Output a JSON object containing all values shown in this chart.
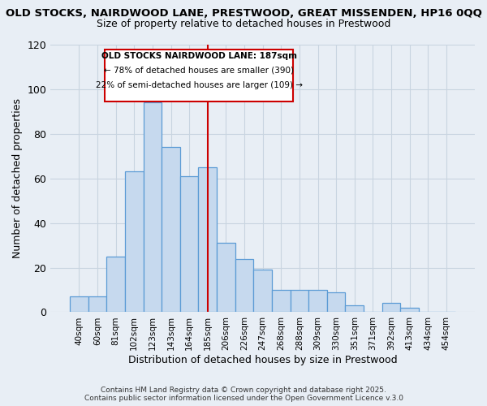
{
  "title_line1": "OLD STOCKS, NAIRDWOOD LANE, PRESTWOOD, GREAT MISSENDEN, HP16 0QQ",
  "title_line2": "Size of property relative to detached houses in Prestwood",
  "xlabel": "Distribution of detached houses by size in Prestwood",
  "ylabel": "Number of detached properties",
  "categories": [
    "40sqm",
    "60sqm",
    "81sqm",
    "102sqm",
    "123sqm",
    "143sqm",
    "164sqm",
    "185sqm",
    "206sqm",
    "226sqm",
    "247sqm",
    "268sqm",
    "288sqm",
    "309sqm",
    "330sqm",
    "351sqm",
    "371sqm",
    "392sqm",
    "413sqm",
    "434sqm",
    "454sqm"
  ],
  "values": [
    7,
    7,
    25,
    63,
    94,
    74,
    61,
    65,
    31,
    24,
    19,
    10,
    10,
    10,
    9,
    3,
    0,
    4,
    2,
    0,
    0
  ],
  "bar_color": "#c6d9ee",
  "bar_edge_color": "#5b9bd5",
  "grid_color": "#c8d4e0",
  "background_color": "#e8eef5",
  "vline_color": "#cc0000",
  "vline_idx": 7,
  "annotation_title": "OLD STOCKS NAIRDWOOD LANE: 187sqm",
  "annotation_line2": "← 78% of detached houses are smaller (390)",
  "annotation_line3": "22% of semi-detached houses are larger (109) →",
  "annotation_box_edge_color": "#cc0000",
  "footnote1": "Contains HM Land Registry data © Crown copyright and database right 2025.",
  "footnote2": "Contains public sector information licensed under the Open Government Licence v.3.0",
  "ylim": [
    0,
    120
  ],
  "yticks": [
    0,
    20,
    40,
    60,
    80,
    100,
    120
  ]
}
